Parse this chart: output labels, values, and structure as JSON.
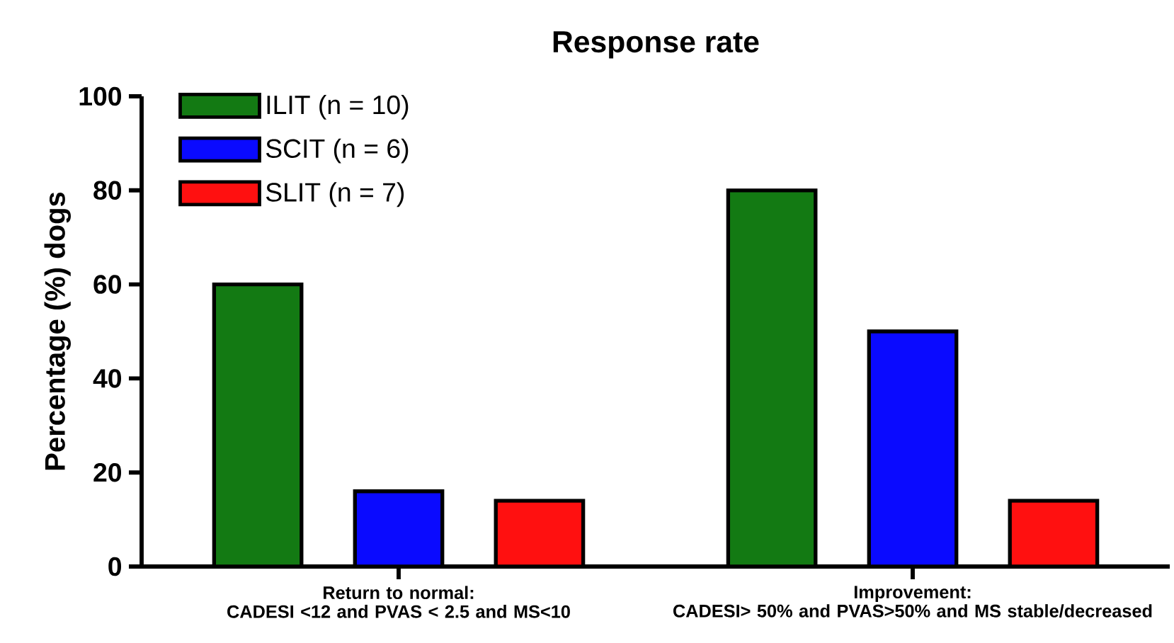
{
  "chart_data": {
    "type": "bar",
    "title": "Response rate",
    "ylabel": "Percentage (%) dogs",
    "categories": [
      "Return to normal:\nCADESI <12 and PVAS < 2.5 and MS<10",
      "Improvement:\nCADESI> 50% and PVAS>50% and MS stable/decreased"
    ],
    "series": [
      {
        "name": "ILIT (n = 10)",
        "color": "#137a13",
        "values": [
          60,
          80
        ]
      },
      {
        "name": "SCIT (n = 6)",
        "color": "#0a0aff",
        "values": [
          16,
          50
        ]
      },
      {
        "name": "SLIT (n = 7)",
        "color": "#ff1010",
        "values": [
          14,
          14
        ]
      }
    ],
    "ylim": [
      0,
      100
    ],
    "yticks": [
      0,
      20,
      40,
      60,
      80,
      100
    ],
    "legend": "top left"
  }
}
